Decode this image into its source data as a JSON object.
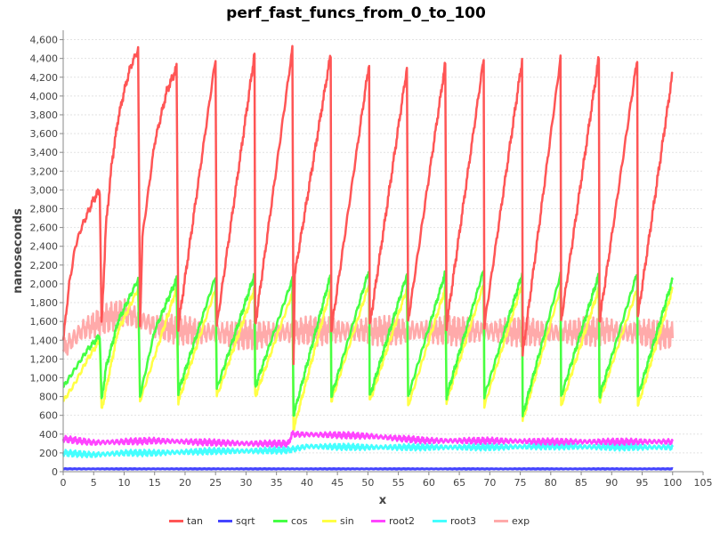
{
  "chart_data": {
    "type": "line",
    "title": "perf_fast_funcs_from_0_to_100",
    "xlabel": "x",
    "ylabel": "nanoseconds",
    "xlim": [
      0,
      105
    ],
    "ylim": [
      0,
      4700
    ],
    "x_ticks": [
      0,
      5,
      10,
      15,
      20,
      25,
      30,
      35,
      40,
      45,
      50,
      55,
      60,
      65,
      70,
      75,
      80,
      85,
      90,
      95,
      100,
      105
    ],
    "y_ticks": [
      0,
      200,
      400,
      600,
      800,
      1000,
      1200,
      1400,
      1600,
      1800,
      2000,
      2200,
      2400,
      2600,
      2800,
      3000,
      3200,
      3400,
      3600,
      3800,
      4000,
      4200,
      4400,
      4600
    ],
    "y_tick_labels": [
      "0",
      "200",
      "400",
      "600",
      "800",
      "1,000",
      "1,200",
      "1,400",
      "1,600",
      "1,800",
      "2,000",
      "2,200",
      "2,400",
      "2,600",
      "2,800",
      "3,000",
      "3,200",
      "3,400",
      "3,600",
      "3,800",
      "4,000",
      "4,200",
      "4,400",
      "4,600"
    ],
    "grid": true,
    "legend_position": "bottom",
    "period": 6.2832,
    "series": [
      {
        "name": "tan",
        "color": "#ff5555",
        "points": [
          [
            0,
            1400
          ],
          [
            1,
            2000
          ],
          [
            2,
            2400
          ],
          [
            3,
            2600
          ],
          [
            4,
            2750
          ],
          [
            5,
            2900
          ],
          [
            6,
            3000
          ],
          [
            6.3,
            1550
          ],
          [
            7,
            2600
          ],
          [
            8,
            3300
          ],
          [
            9,
            3750
          ],
          [
            10,
            4050
          ],
          [
            11,
            4300
          ],
          [
            12.3,
            4500
          ],
          [
            12.6,
            1550
          ],
          [
            13,
            2500
          ],
          [
            15,
            3500
          ],
          [
            17,
            4050
          ],
          [
            18.6,
            4300
          ],
          [
            18.9,
            1550
          ],
          [
            25,
            4400
          ],
          [
            25.2,
            1550
          ],
          [
            31.4,
            4450
          ],
          [
            31.5,
            1550
          ],
          [
            37.6,
            4500
          ],
          [
            37.8,
            1150
          ],
          [
            38,
            2100
          ],
          [
            43.9,
            4450
          ],
          [
            44,
            1500
          ],
          [
            50.2,
            4350
          ],
          [
            50.3,
            1550
          ],
          [
            56.4,
            4300
          ],
          [
            56.6,
            1600
          ],
          [
            62.7,
            4350
          ],
          [
            62.9,
            1550
          ],
          [
            69,
            4400
          ],
          [
            69.1,
            1550
          ],
          [
            75.3,
            4380
          ],
          [
            75.4,
            1250
          ],
          [
            81.6,
            4400
          ],
          [
            81.7,
            1600
          ],
          [
            87.9,
            4420
          ],
          [
            88,
            1600
          ],
          [
            94.2,
            4400
          ],
          [
            94.3,
            1650
          ],
          [
            100,
            4250
          ]
        ]
      },
      {
        "name": "sqrt",
        "color": "#4444ff",
        "points": [
          [
            0,
            30
          ],
          [
            25,
            30
          ],
          [
            50,
            30
          ],
          [
            75,
            30
          ],
          [
            100,
            30
          ]
        ]
      },
      {
        "name": "cos",
        "color": "#44ff44",
        "points": [
          [
            0,
            900
          ],
          [
            2,
            1100
          ],
          [
            4,
            1300
          ],
          [
            6,
            1450
          ],
          [
            6.3,
            750
          ],
          [
            7,
            1100
          ],
          [
            9,
            1600
          ],
          [
            12.3,
            2050
          ],
          [
            12.6,
            800
          ],
          [
            15,
            1500
          ],
          [
            18.6,
            2050
          ],
          [
            18.9,
            850
          ],
          [
            25,
            2080
          ],
          [
            25.2,
            880
          ],
          [
            31.4,
            2100
          ],
          [
            31.5,
            900
          ],
          [
            37.6,
            2050
          ],
          [
            37.8,
            600
          ],
          [
            43.9,
            2100
          ],
          [
            44,
            800
          ],
          [
            50.2,
            2150
          ],
          [
            50.3,
            800
          ],
          [
            56.4,
            2100
          ],
          [
            56.6,
            800
          ],
          [
            62.7,
            2120
          ],
          [
            62.9,
            800
          ],
          [
            69,
            2150
          ],
          [
            69.1,
            800
          ],
          [
            75.3,
            2100
          ],
          [
            75.4,
            600
          ],
          [
            81.6,
            2100
          ],
          [
            81.7,
            800
          ],
          [
            87.9,
            2100
          ],
          [
            88,
            800
          ],
          [
            94.2,
            2120
          ],
          [
            94.3,
            800
          ],
          [
            100,
            2050
          ]
        ]
      },
      {
        "name": "sin",
        "color": "#ffff44",
        "points": [
          [
            0,
            750
          ],
          [
            2,
            950
          ],
          [
            4,
            1200
          ],
          [
            6,
            1400
          ],
          [
            6.3,
            650
          ],
          [
            9,
            1500
          ],
          [
            12.3,
            1950
          ],
          [
            12.6,
            750
          ],
          [
            18.6,
            1950
          ],
          [
            18.9,
            750
          ],
          [
            25,
            1950
          ],
          [
            25.2,
            800
          ],
          [
            31.4,
            1950
          ],
          [
            31.5,
            800
          ],
          [
            37.6,
            1900
          ],
          [
            37.8,
            450
          ],
          [
            43.9,
            1950
          ],
          [
            44,
            750
          ],
          [
            50.2,
            2000
          ],
          [
            50.3,
            750
          ],
          [
            56.4,
            1950
          ],
          [
            56.6,
            700
          ],
          [
            62.7,
            1950
          ],
          [
            62.9,
            750
          ],
          [
            69,
            2000
          ],
          [
            69.1,
            700
          ],
          [
            75.3,
            2000
          ],
          [
            75.4,
            550
          ],
          [
            81.6,
            1950
          ],
          [
            81.7,
            700
          ],
          [
            87.9,
            1950
          ],
          [
            88,
            750
          ],
          [
            94.2,
            1950
          ],
          [
            94.3,
            700
          ],
          [
            100,
            1950
          ]
        ]
      },
      {
        "name": "root2",
        "color": "#ff44ff",
        "points": [
          [
            0,
            350
          ],
          [
            5,
            310
          ],
          [
            10,
            320
          ],
          [
            15,
            330
          ],
          [
            20,
            320
          ],
          [
            25,
            310
          ],
          [
            30,
            300
          ],
          [
            37,
            300
          ],
          [
            37.5,
            400
          ],
          [
            45,
            390
          ],
          [
            50,
            380
          ],
          [
            60,
            330
          ],
          [
            70,
            330
          ],
          [
            80,
            320
          ],
          [
            90,
            320
          ],
          [
            100,
            320
          ]
        ]
      },
      {
        "name": "root3",
        "color": "#44ffff",
        "points": [
          [
            0,
            200
          ],
          [
            5,
            180
          ],
          [
            10,
            200
          ],
          [
            15,
            200
          ],
          [
            20,
            210
          ],
          [
            25,
            220
          ],
          [
            30,
            220
          ],
          [
            37,
            230
          ],
          [
            40,
            270
          ],
          [
            50,
            260
          ],
          [
            60,
            260
          ],
          [
            70,
            260
          ],
          [
            80,
            270
          ],
          [
            90,
            260
          ],
          [
            100,
            260
          ]
        ]
      },
      {
        "name": "exp",
        "color": "#ffaaaa",
        "points": [
          [
            0,
            1300
          ],
          [
            3,
            1500
          ],
          [
            6,
            1600
          ],
          [
            10,
            1700
          ],
          [
            15,
            1550
          ],
          [
            20,
            1500
          ],
          [
            30,
            1450
          ],
          [
            40,
            1500
          ],
          [
            50,
            1500
          ],
          [
            60,
            1500
          ],
          [
            70,
            1500
          ],
          [
            80,
            1480
          ],
          [
            90,
            1500
          ],
          [
            100,
            1450
          ]
        ]
      }
    ]
  }
}
